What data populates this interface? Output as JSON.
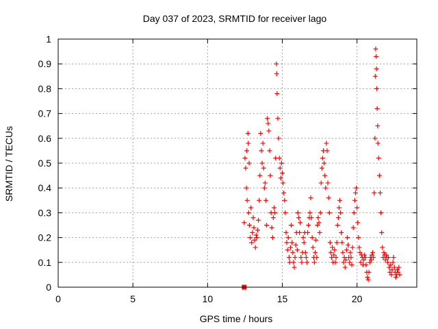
{
  "chart_data": {
    "type": "scatter",
    "title": "Day 037 of 2023, SRMTID for receiver lago",
    "xlabel": "GPS time / hours",
    "ylabel": "SRMTID / TECUs",
    "xlim": [
      0,
      24
    ],
    "ylim": [
      0,
      1
    ],
    "x_ticks": [
      0,
      5,
      10,
      15,
      20
    ],
    "x_tick_labels": [
      "0",
      "5",
      "10",
      "15",
      "20"
    ],
    "y_ticks": [
      0,
      0.1,
      0.2,
      0.3,
      0.4,
      0.5,
      0.6,
      0.7,
      0.8,
      0.9,
      1
    ],
    "y_tick_labels": [
      "0",
      "0.1",
      "0.2",
      "0.3",
      "0.4",
      "0.5",
      "0.6",
      "0.7",
      "0.8",
      "0.9",
      "1"
    ],
    "grid": true,
    "marker_color": "#ff0000",
    "marker_symbol": "+",
    "square_marker": {
      "x": 12.45,
      "y": 0
    },
    "series": [
      {
        "name": "SRMTID",
        "points": [
          [
            12.45,
            0.26
          ],
          [
            12.5,
            0.52
          ],
          [
            12.55,
            0.48
          ],
          [
            12.6,
            0.4
          ],
          [
            12.62,
            0.55
          ],
          [
            12.65,
            0.35
          ],
          [
            12.7,
            0.62
          ],
          [
            12.72,
            0.58
          ],
          [
            12.75,
            0.3
          ],
          [
            12.78,
            0.5
          ],
          [
            12.8,
            0.25
          ],
          [
            12.85,
            0.2
          ],
          [
            12.9,
            0.32
          ],
          [
            12.95,
            0.18
          ],
          [
            13.0,
            0.22
          ],
          [
            13.05,
            0.28
          ],
          [
            13.1,
            0.24
          ],
          [
            13.15,
            0.19
          ],
          [
            13.2,
            0.16
          ],
          [
            13.25,
            0.21
          ],
          [
            13.3,
            0.2
          ],
          [
            13.35,
            0.23
          ],
          [
            13.4,
            0.27
          ],
          [
            13.45,
            0.35
          ],
          [
            13.5,
            0.45
          ],
          [
            13.55,
            0.62
          ],
          [
            13.6,
            0.55
          ],
          [
            13.65,
            0.5
          ],
          [
            13.7,
            0.58
          ],
          [
            13.75,
            0.48
          ],
          [
            13.8,
            0.4
          ],
          [
            13.85,
            0.42
          ],
          [
            13.9,
            0.35
          ],
          [
            13.95,
            0.25
          ],
          [
            14.0,
            0.68
          ],
          [
            14.05,
            0.66
          ],
          [
            14.1,
            0.63
          ],
          [
            14.15,
            0.55
          ],
          [
            14.2,
            0.45
          ],
          [
            14.25,
            0.3
          ],
          [
            14.3,
            0.24
          ],
          [
            14.35,
            0.2
          ],
          [
            14.4,
            0.28
          ],
          [
            14.45,
            0.32
          ],
          [
            14.5,
            0.3
          ],
          [
            14.55,
            0.52
          ],
          [
            14.6,
            0.9
          ],
          [
            14.62,
            0.86
          ],
          [
            14.65,
            0.78
          ],
          [
            14.7,
            0.68
          ],
          [
            14.75,
            0.6
          ],
          [
            14.8,
            0.52
          ],
          [
            14.85,
            0.48
          ],
          [
            14.9,
            0.44
          ],
          [
            14.95,
            0.5
          ],
          [
            15.0,
            0.46
          ],
          [
            15.05,
            0.42
          ],
          [
            15.1,
            0.38
          ],
          [
            15.15,
            0.35
          ],
          [
            15.2,
            0.3
          ],
          [
            15.25,
            0.22
          ],
          [
            15.3,
            0.18
          ],
          [
            15.35,
            0.15
          ],
          [
            15.4,
            0.2
          ],
          [
            15.45,
            0.12
          ],
          [
            15.5,
            0.1
          ],
          [
            15.55,
            0.16
          ],
          [
            15.6,
            0.25
          ],
          [
            15.65,
            0.18
          ],
          [
            15.7,
            0.14
          ],
          [
            15.75,
            0.1
          ],
          [
            15.8,
            0.08
          ],
          [
            15.85,
            0.12
          ],
          [
            15.9,
            0.17
          ],
          [
            15.95,
            0.22
          ],
          [
            16.0,
            0.15
          ],
          [
            16.05,
            0.3
          ],
          [
            16.1,
            0.28
          ],
          [
            16.15,
            0.22
          ],
          [
            16.2,
            0.26
          ],
          [
            16.25,
            0.12
          ],
          [
            16.3,
            0.1
          ],
          [
            16.35,
            0.14
          ],
          [
            16.4,
            0.2
          ],
          [
            16.45,
            0.18
          ],
          [
            16.5,
            0.22
          ],
          [
            16.55,
            0.14
          ],
          [
            16.6,
            0.12
          ],
          [
            16.65,
            0.1
          ],
          [
            16.7,
            0.22
          ],
          [
            16.75,
            0.25
          ],
          [
            16.8,
            0.28
          ],
          [
            16.85,
            0.3
          ],
          [
            16.9,
            0.36
          ],
          [
            16.95,
            0.28
          ],
          [
            17.0,
            0.2
          ],
          [
            17.05,
            0.16
          ],
          [
            17.1,
            0.12
          ],
          [
            17.15,
            0.1
          ],
          [
            17.2,
            0.14
          ],
          [
            17.25,
            0.19
          ],
          [
            17.3,
            0.12
          ],
          [
            17.35,
            0.25
          ],
          [
            17.4,
            0.28
          ],
          [
            17.45,
            0.26
          ],
          [
            17.5,
            0.22
          ],
          [
            17.55,
            0.3
          ],
          [
            17.6,
            0.42
          ],
          [
            17.65,
            0.48
          ],
          [
            17.7,
            0.52
          ],
          [
            17.75,
            0.55
          ],
          [
            17.8,
            0.5
          ],
          [
            17.85,
            0.45
          ],
          [
            17.9,
            0.4
          ],
          [
            17.95,
            0.58
          ],
          [
            18.0,
            0.55
          ],
          [
            18.05,
            0.42
          ],
          [
            18.1,
            0.36
          ],
          [
            18.15,
            0.3
          ],
          [
            18.2,
            0.18
          ],
          [
            18.25,
            0.14
          ],
          [
            18.3,
            0.12
          ],
          [
            18.35,
            0.16
          ],
          [
            18.4,
            0.1
          ],
          [
            18.45,
            0.13
          ],
          [
            18.5,
            0.15
          ],
          [
            18.55,
            0.1
          ],
          [
            18.6,
            0.12
          ],
          [
            18.65,
            0.18
          ],
          [
            18.7,
            0.25
          ],
          [
            18.75,
            0.28
          ],
          [
            18.8,
            0.32
          ],
          [
            18.85,
            0.35
          ],
          [
            18.9,
            0.3
          ],
          [
            18.95,
            0.22
          ],
          [
            19.0,
            0.18
          ],
          [
            19.05,
            0.14
          ],
          [
            19.1,
            0.1
          ],
          [
            19.15,
            0.12
          ],
          [
            19.2,
            0.08
          ],
          [
            19.25,
            0.11
          ],
          [
            19.3,
            0.15
          ],
          [
            19.35,
            0.2
          ],
          [
            19.4,
            0.17
          ],
          [
            19.45,
            0.12
          ],
          [
            19.5,
            0.1
          ],
          [
            19.55,
            0.14
          ],
          [
            19.6,
            0.12
          ],
          [
            19.65,
            0.09
          ],
          [
            19.7,
            0.16
          ],
          [
            19.75,
            0.24
          ],
          [
            19.8,
            0.3
          ],
          [
            19.85,
            0.35
          ],
          [
            19.9,
            0.38
          ],
          [
            19.95,
            0.4
          ],
          [
            20.0,
            0.32
          ],
          [
            20.05,
            0.26
          ],
          [
            20.1,
            0.2
          ],
          [
            20.15,
            0.16
          ],
          [
            20.2,
            0.14
          ],
          [
            20.25,
            0.1
          ],
          [
            20.3,
            0.13
          ],
          [
            20.35,
            0.12
          ],
          [
            20.4,
            0.09
          ],
          [
            20.45,
            0.11
          ],
          [
            20.5,
            0.13
          ],
          [
            20.55,
            0.12
          ],
          [
            20.6,
            0.09
          ],
          [
            20.65,
            0.06
          ],
          [
            20.7,
            0.04
          ],
          [
            20.75,
            0.03
          ],
          [
            20.8,
            0.06
          ],
          [
            20.85,
            0.1
          ],
          [
            20.9,
            0.12
          ],
          [
            20.95,
            0.11
          ],
          [
            21.0,
            0.13
          ],
          [
            21.05,
            0.14
          ],
          [
            21.1,
            0.12
          ],
          [
            21.15,
            0.38
          ],
          [
            21.2,
            0.6
          ],
          [
            21.22,
            0.85
          ],
          [
            21.25,
            0.96
          ],
          [
            21.28,
            0.93
          ],
          [
            21.3,
            0.88
          ],
          [
            21.32,
            0.8
          ],
          [
            21.35,
            0.72
          ],
          [
            21.38,
            0.65
          ],
          [
            21.4,
            0.58
          ],
          [
            21.45,
            0.52
          ],
          [
            21.5,
            0.45
          ],
          [
            21.55,
            0.38
          ],
          [
            21.6,
            0.3
          ],
          [
            21.65,
            0.22
          ],
          [
            21.7,
            0.16
          ],
          [
            21.75,
            0.12
          ],
          [
            21.8,
            0.14
          ],
          [
            21.85,
            0.13
          ],
          [
            21.9,
            0.11
          ],
          [
            21.95,
            0.13
          ],
          [
            22.0,
            0.12
          ],
          [
            22.05,
            0.1
          ],
          [
            22.1,
            0.12
          ],
          [
            22.15,
            0.08
          ],
          [
            22.2,
            0.06
          ],
          [
            22.25,
            0.09
          ],
          [
            22.3,
            0.05
          ],
          [
            22.35,
            0.07
          ],
          [
            22.4,
            0.1
          ],
          [
            22.45,
            0.12
          ],
          [
            22.5,
            0.08
          ],
          [
            22.55,
            0.06
          ],
          [
            22.6,
            0.04
          ],
          [
            22.65,
            0.05
          ],
          [
            22.7,
            0.07
          ],
          [
            22.75,
            0.06
          ],
          [
            22.8,
            0.08
          ],
          [
            22.85,
            0.05
          ]
        ]
      }
    ]
  }
}
